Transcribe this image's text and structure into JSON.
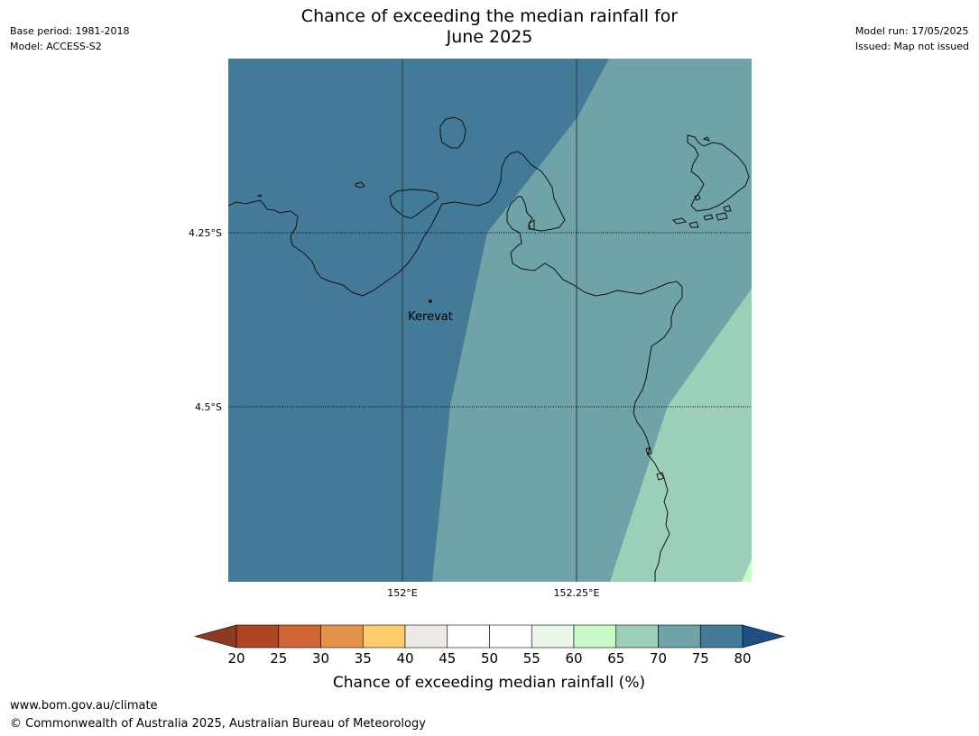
{
  "header": {
    "title_line1": "Chance of exceeding the median rainfall for",
    "title_line2": "June 2025",
    "base_period": "Base period: 1981-2018",
    "model": "Model: ACCESS-S2",
    "model_run": "Model run: 17/05/2025",
    "issued": "Issued: Map not issued"
  },
  "map": {
    "latitude_labels": [
      "4.25°S",
      "4.5°S"
    ],
    "longitude_labels": [
      "152°E",
      "152.25°E"
    ],
    "place": {
      "name": "Kerevat"
    },
    "zones": [
      {
        "name": "75-80%",
        "color": "#437a98"
      },
      {
        "name": "70-75%",
        "color": "#6fa3a7"
      },
      {
        "name": "65-70%",
        "color": "#9ccfb8"
      },
      {
        "name": "60-65%",
        "color": "#c9fbc9"
      }
    ]
  },
  "colorbar": {
    "label": "Chance of exceeding median rainfall (%)",
    "ticks": [
      "20",
      "25",
      "30",
      "35",
      "40",
      "45",
      "50",
      "55",
      "60",
      "65",
      "70",
      "75",
      "80"
    ],
    "low_arrow_color": "#8e3a22",
    "high_arrow_color": "#1d4f85",
    "bins": [
      "#ae4624",
      "#cf6634",
      "#e39448",
      "#ffcd6a",
      "#ede9e4",
      "#ffffff",
      "#ffffff",
      "#e9f6e9",
      "#c9fbc9",
      "#9ccfb8",
      "#6fa3a7",
      "#437a98"
    ]
  },
  "footer": {
    "website": "www.bom.gov.au/climate",
    "copyright": "© Commonwealth of Australia 2025, Australian Bureau of Meteorology"
  }
}
